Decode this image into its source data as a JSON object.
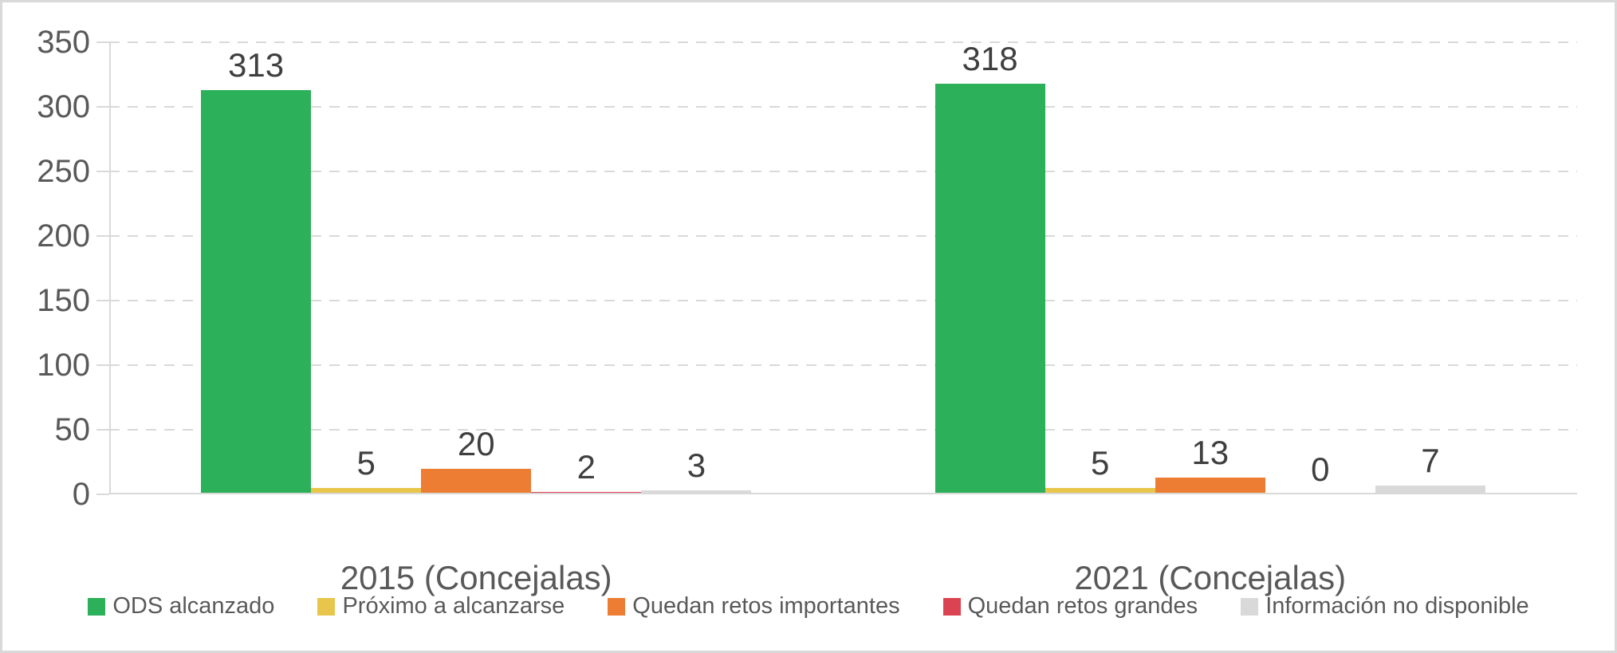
{
  "chart_data": {
    "type": "bar",
    "title": "",
    "categories": [
      "2015 (Concejalas)",
      "2021 (Concejalas)"
    ],
    "series": [
      {
        "name": "ODS alcanzado",
        "color": "#2db05a",
        "values": [
          313,
          318
        ]
      },
      {
        "name": "Próximo a alcanzarse",
        "color": "#e8c64b",
        "values": [
          5,
          5
        ]
      },
      {
        "name": "Quedan retos importantes",
        "color": "#ec7d33",
        "values": [
          20,
          13
        ]
      },
      {
        "name": "Quedan retos grandes",
        "color": "#db4352",
        "values": [
          2,
          0
        ]
      },
      {
        "name": "Información no disponible",
        "color": "#d9d9d9",
        "values": [
          3,
          7
        ]
      }
    ],
    "ylim": [
      0,
      350
    ],
    "ytick_step": 50,
    "yticks": [
      "0",
      "50",
      "100",
      "150",
      "200",
      "250",
      "300",
      "350"
    ],
    "grid": "horizontal-dashed",
    "legend_position": "bottom",
    "data_labels": true
  },
  "colors": {
    "axis_text": "#595959",
    "data_label_text": "#3f3f3f",
    "gridline": "#d9d9d9",
    "axis_line": "#d9d9d9",
    "frame_border": "#d9d9d9",
    "background": "#ffffff"
  }
}
